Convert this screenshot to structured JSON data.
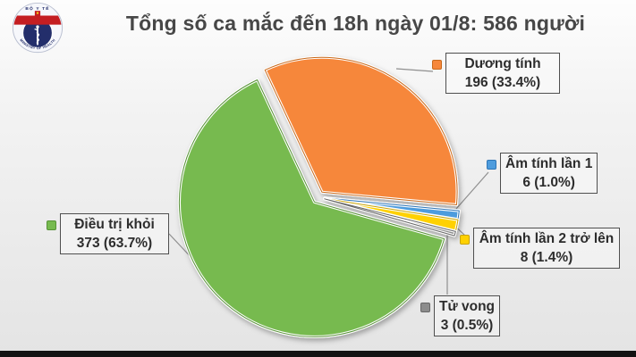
{
  "logo": {
    "top_text": "BỘ Y TẾ",
    "bottom_text": "MINISTRY OF HEALTH",
    "band_color": "#C41E22",
    "star_color": "#F7D117",
    "circle_color": "#232E6B"
  },
  "chart_data": {
    "type": "pie",
    "title": "Tổng số ca mắc đến 18h ngày 01/8: 586 người",
    "total": 586,
    "start_angle_deg": -25,
    "direction": "clockwise",
    "exploded": true,
    "legend_position": "callouts",
    "slices": [
      {
        "label": "Dương tính",
        "value": 196,
        "pct": 33.4,
        "value_text": "196 (33.4%)",
        "color": "#F6873B",
        "border_color": "#C96A1C"
      },
      {
        "label": "Âm tính lần 1",
        "value": 6,
        "pct": 1.0,
        "value_text": "6 (1.0%)",
        "color": "#4E9CDD",
        "border_color": "#2E75B6"
      },
      {
        "label": "Âm tính lần 2 trở lên",
        "value": 8,
        "pct": 1.4,
        "value_text": "8 (1.4%)",
        "color": "#FFD100",
        "border_color": "#C9A300"
      },
      {
        "label": "Tử vong",
        "value": 3,
        "pct": 0.5,
        "value_text": "3 (0.5%)",
        "color": "#8C8C8C",
        "border_color": "#666666"
      },
      {
        "label": "Điều trị khỏi",
        "value": 373,
        "pct": 63.7,
        "value_text": "373 (63.7%)",
        "color": "#77BA4F",
        "border_color": "#569136"
      }
    ]
  }
}
